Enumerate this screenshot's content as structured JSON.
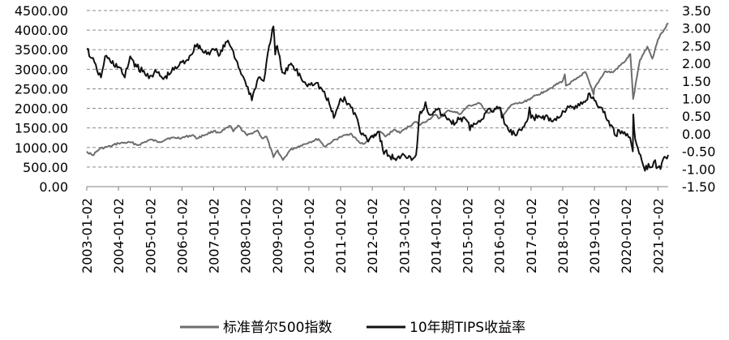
{
  "chart_data": {
    "type": "line",
    "title": "",
    "xlabel": "",
    "ylabel": "",
    "y_left": {
      "ticks": [
        "0.00",
        "500.00",
        "1000.00",
        "1500.00",
        "2000.00",
        "2500.00",
        "3000.00",
        "3500.00",
        "4000.00",
        "4500.00"
      ],
      "lim": [
        0,
        4500
      ]
    },
    "y_right": {
      "ticks": [
        "-1.50",
        "-1.00",
        "-0.50",
        "0.00",
        "0.50",
        "1.00",
        "1.50",
        "2.00",
        "2.50",
        "3.00",
        "3.50"
      ],
      "lim": [
        -1.5,
        3.5
      ]
    },
    "x_ticks": [
      "2003-01-02",
      "2004-01-02",
      "2005-01-02",
      "2006-01-02",
      "2007-01-02",
      "2008-01-02",
      "2009-01-02",
      "2010-01-02",
      "2011-01-02",
      "2012-01-02",
      "2013-01-02",
      "2014-01-02",
      "2015-01-02",
      "2016-01-02",
      "2017-01-02",
      "2018-01-02",
      "2019-01-02",
      "2020-01-02",
      "2021-01-02"
    ],
    "x_range": [
      "2003-01-02",
      "2021-04-30"
    ],
    "grid": "horizontal dashed",
    "legend_position": "bottom",
    "series": [
      {
        "name": "标准普尔500指数",
        "axis": "left",
        "color": "#6d6d6d",
        "x": [
          "2003-01-02",
          "2003-03-11",
          "2003-06-01",
          "2003-10-01",
          "2004-01-02",
          "2004-06-01",
          "2004-08-12",
          "2005-01-02",
          "2005-04-20",
          "2005-08-01",
          "2006-01-02",
          "2006-05-08",
          "2006-06-13",
          "2007-01-02",
          "2007-03-05",
          "2007-07-16",
          "2007-08-16",
          "2007-10-09",
          "2008-01-22",
          "2008-05-19",
          "2008-07-15",
          "2008-09-01",
          "2008-11-20",
          "2009-01-06",
          "2009-03-09",
          "2009-06-01",
          "2009-10-01",
          "2010-01-02",
          "2010-04-23",
          "2010-07-02",
          "2010-10-01",
          "2011-01-02",
          "2011-04-29",
          "2011-08-08",
          "2011-10-03",
          "2012-01-02",
          "2012-04-02",
          "2012-06-01",
          "2012-09-14",
          "2012-11-15",
          "2013-01-02",
          "2013-05-21",
          "2013-06-24",
          "2013-10-01",
          "2014-01-02",
          "2014-02-03",
          "2014-06-01",
          "2014-10-15",
          "2015-01-02",
          "2015-05-21",
          "2015-08-25",
          "2016-01-02",
          "2016-02-11",
          "2016-06-01",
          "2016-10-01",
          "2017-01-02",
          "2017-06-01",
          "2018-01-02",
          "2018-01-26",
          "2018-02-08",
          "2018-06-01",
          "2018-09-20",
          "2018-12-24",
          "2019-01-02",
          "2019-05-01",
          "2019-08-01",
          "2019-12-31",
          "2020-02-19",
          "2020-03-23",
          "2020-06-08",
          "2020-09-02",
          "2020-10-30",
          "2021-01-02",
          "2021-02-15",
          "2021-04-30"
        ],
        "y": [
          900,
          800,
          970,
          1030,
          1110,
          1130,
          1060,
          1200,
          1140,
          1240,
          1250,
          1320,
          1230,
          1420,
          1380,
          1550,
          1410,
          1560,
          1310,
          1440,
          1230,
          1280,
          750,
          930,
          680,
          940,
          1050,
          1130,
          1220,
          1020,
          1160,
          1270,
          1360,
          1120,
          1100,
          1280,
          1410,
          1280,
          1460,
          1370,
          1460,
          1660,
          1570,
          1700,
          1840,
          1740,
          1950,
          1860,
          2050,
          2130,
          1880,
          2010,
          1830,
          2100,
          2150,
          2260,
          2430,
          2700,
          2870,
          2580,
          2740,
          2930,
          2350,
          2510,
          2940,
          2920,
          3230,
          3390,
          2240,
          3230,
          3580,
          3270,
          3760,
          3930,
          4180
        ]
      },
      {
        "name": "10年期TIPS收益率",
        "axis": "right",
        "color": "#111111",
        "x": [
          "2003-01-02",
          "2003-03-01",
          "2003-05-01",
          "2003-06-15",
          "2003-08-01",
          "2003-10-01",
          "2004-01-02",
          "2004-03-15",
          "2004-05-15",
          "2004-08-01",
          "2004-11-01",
          "2005-01-02",
          "2005-03-15",
          "2005-06-01",
          "2005-09-01",
          "2005-12-01",
          "2006-03-01",
          "2006-06-28",
          "2006-09-15",
          "2006-12-01",
          "2007-01-02",
          "2007-03-15",
          "2007-06-15",
          "2007-08-15",
          "2007-09-15",
          "2007-12-01",
          "2008-01-15",
          "2008-03-01",
          "2008-03-17",
          "2008-04-15",
          "2008-06-01",
          "2008-08-01",
          "2008-10-01",
          "2008-11-20",
          "2008-12-10",
          "2009-01-02",
          "2009-02-15",
          "2009-04-01",
          "2009-06-10",
          "2009-08-01",
          "2009-10-01",
          "2009-12-01",
          "2010-02-01",
          "2010-04-01",
          "2010-06-15",
          "2010-08-25",
          "2010-10-15",
          "2010-12-15",
          "2011-01-02",
          "2011-03-01",
          "2011-05-01",
          "2011-07-01",
          "2011-08-15",
          "2011-10-01",
          "2011-12-01",
          "2012-01-02",
          "2012-03-20",
          "2012-05-01",
          "2012-07-24",
          "2012-09-15",
          "2012-11-15",
          "2013-01-02",
          "2013-03-15",
          "2013-04-15",
          "2013-05-20",
          "2013-06-25",
          "2013-08-01",
          "2013-09-05",
          "2013-10-15",
          "2014-01-02",
          "2014-03-15",
          "2014-05-15",
          "2014-08-15",
          "2014-10-15",
          "2015-01-02",
          "2015-01-30",
          "2015-03-15",
          "2015-06-10",
          "2015-08-01",
          "2015-10-01",
          "2016-01-02",
          "2016-03-15",
          "2016-05-01",
          "2016-07-08",
          "2016-09-15",
          "2016-11-15",
          "2016-12-15",
          "2017-01-02",
          "2017-03-15",
          "2017-06-15",
          "2017-09-08",
          "2017-11-15",
          "2018-01-02",
          "2018-03-15",
          "2018-05-15",
          "2018-07-15",
          "2018-09-15",
          "2018-11-08",
          "2019-01-02",
          "2019-03-15",
          "2019-05-15",
          "2019-07-15",
          "2019-09-03",
          "2019-10-15",
          "2019-12-15",
          "2020-01-15",
          "2020-02-15",
          "2020-03-19",
          "2020-03-25",
          "2020-04-15",
          "2020-05-15",
          "2020-06-15",
          "2020-08-06",
          "2020-09-15",
          "2020-10-15",
          "2020-11-15",
          "2021-01-02",
          "2021-02-01",
          "2021-03-18",
          "2021-04-30"
        ],
        "y": [
          2.4,
          2.15,
          1.8,
          1.6,
          2.2,
          2.05,
          1.9,
          1.6,
          2.2,
          1.9,
          1.7,
          1.65,
          1.75,
          1.55,
          1.75,
          1.95,
          2.1,
          2.55,
          2.3,
          2.35,
          2.4,
          2.25,
          2.65,
          2.35,
          2.1,
          1.65,
          1.35,
          1.15,
          0.95,
          1.25,
          1.6,
          1.5,
          2.5,
          3.05,
          2.25,
          2.5,
          1.9,
          1.7,
          2.0,
          1.8,
          1.6,
          1.4,
          1.45,
          1.45,
          1.2,
          0.85,
          0.45,
          0.85,
          1.0,
          0.95,
          0.75,
          0.5,
          0.05,
          -0.05,
          -0.15,
          -0.05,
          0.05,
          -0.45,
          -0.65,
          -0.7,
          -0.7,
          -0.6,
          -0.65,
          -0.7,
          -0.6,
          0.5,
          0.65,
          0.9,
          0.55,
          0.7,
          0.55,
          0.4,
          0.3,
          0.45,
          0.35,
          0.1,
          0.3,
          0.4,
          0.6,
          0.65,
          0.75,
          0.25,
          0.05,
          -0.05,
          0.1,
          0.35,
          0.75,
          0.45,
          0.45,
          0.5,
          0.35,
          0.45,
          0.65,
          0.75,
          0.7,
          0.8,
          0.9,
          1.15,
          0.95,
          0.75,
          0.45,
          0.25,
          -0.05,
          0.1,
          0.05,
          0.0,
          -0.1,
          -0.5,
          0.55,
          -0.15,
          -0.4,
          -0.6,
          -1.05,
          -0.85,
          -0.95,
          -0.8,
          -0.95,
          -1.0,
          -0.65,
          -0.6
        ]
      }
    ]
  }
}
